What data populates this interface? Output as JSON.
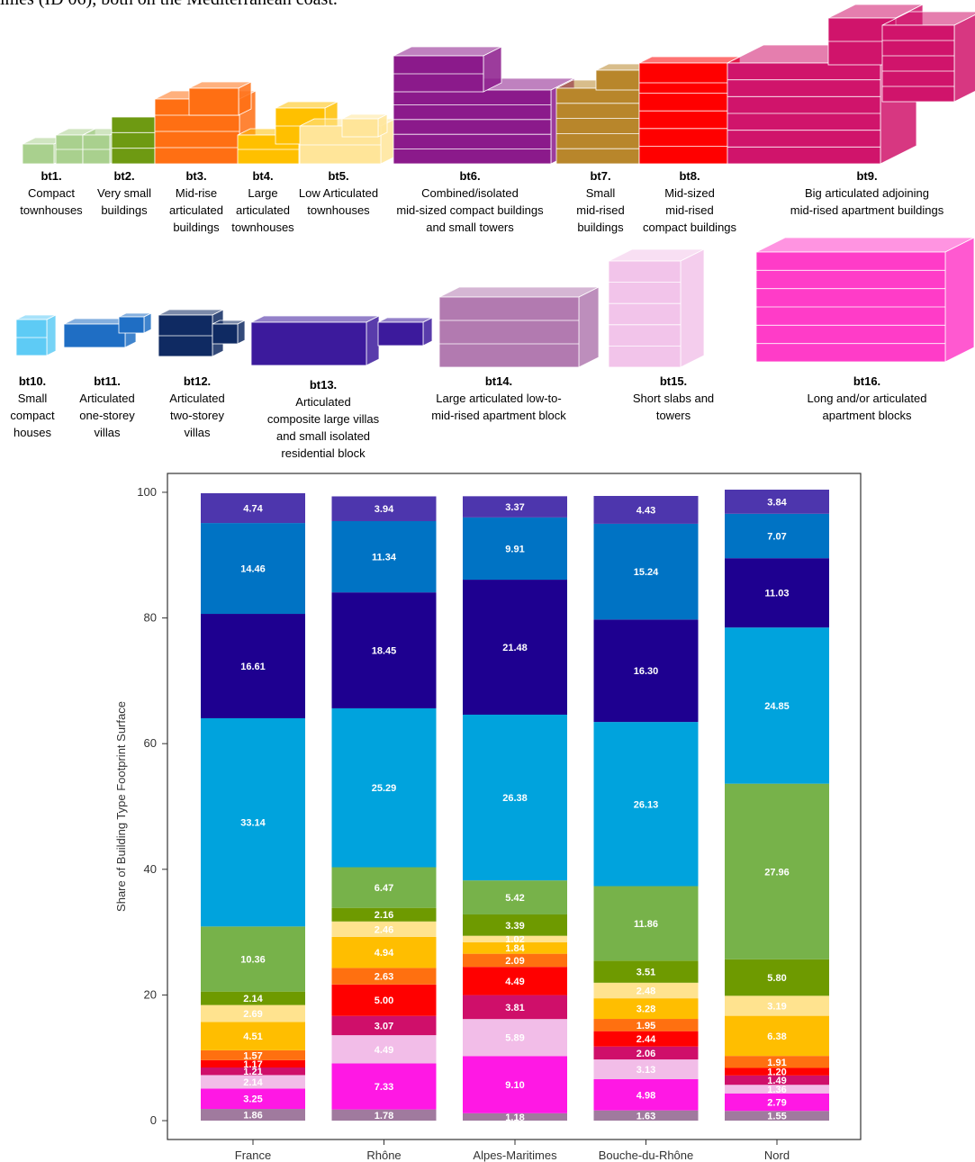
{
  "intro_text": "imes (ID 06), both on the Mediterranean coast.",
  "legend": [
    {
      "id": "bt1.",
      "lines": [
        "Compact",
        "townhouses"
      ],
      "color": "#a9d08e"
    },
    {
      "id": "bt2.",
      "lines": [
        "Very small",
        "buildings"
      ],
      "color": "#6e9a12"
    },
    {
      "id": "bt3.",
      "lines": [
        "Mid-rise",
        "articulated",
        "buildings"
      ],
      "color": "#ff6f13"
    },
    {
      "id": "bt4.",
      "lines": [
        "Large",
        "articulated",
        "townhouses"
      ],
      "color": "#ffc000"
    },
    {
      "id": "bt5.",
      "lines": [
        "Low Articulated",
        "townhouses"
      ],
      "color": "#ffe599"
    },
    {
      "id": "bt6.",
      "lines": [
        "Combined/isolated",
        "mid-sized compact buildings",
        "and small towers"
      ],
      "color": "#8b1a8b"
    },
    {
      "id": "bt7.",
      "lines": [
        "Small",
        "mid-rised",
        "buildings"
      ],
      "color": "#b8862b"
    },
    {
      "id": "bt8.",
      "lines": [
        "Mid-sized",
        "mid-rised",
        "compact buildings"
      ],
      "color": "#ff0000"
    },
    {
      "id": "bt9.",
      "lines": [
        "Big articulated adjoining",
        "mid-rised apartment buildings"
      ],
      "color": "#d0146b"
    },
    {
      "id": "bt10.",
      "lines": [
        "Small",
        "compact",
        "houses"
      ],
      "color": "#5ecbf5"
    },
    {
      "id": "bt11.",
      "lines": [
        "Articulated",
        "one-storey",
        "villas"
      ],
      "color": "#1f6ec4"
    },
    {
      "id": "bt12.",
      "lines": [
        "Articulated",
        "two-storey",
        "villas"
      ],
      "color": "#0f2a62"
    },
    {
      "id": "bt13.",
      "lines": [
        "Articulated",
        "composite large villas",
        "and small isolated",
        "residential block"
      ],
      "color": "#3c1a9c"
    },
    {
      "id": "bt14.",
      "lines": [
        "Large articulated low-to-",
        "mid-rised apartment block"
      ],
      "color": "#b27ab0"
    },
    {
      "id": "bt15.",
      "lines": [
        "Short slabs and",
        "towers"
      ],
      "color": "#f2c4ea"
    },
    {
      "id": "bt16.",
      "lines": [
        "Long and/or articulated",
        "apartment blocks"
      ],
      "color": "#ff3cc8"
    }
  ],
  "chart_data": {
    "type": "bar",
    "stacked": true,
    "ylabel": "Share of Building Type Footprint Surface",
    "xlabel": "",
    "ylim": [
      -3,
      103
    ],
    "yticks": [
      0,
      20,
      40,
      60,
      80,
      100
    ],
    "grid": false,
    "categories": [
      "France",
      "Rhône",
      "Alpes-Maritimes",
      "Bouche-du-Rhône",
      "Nord"
    ],
    "series": [
      {
        "color": "#a07a9e",
        "values": [
          1.86,
          1.78,
          1.18,
          1.63,
          1.55
        ]
      },
      {
        "color": "#ff18e4",
        "values": [
          3.25,
          7.33,
          9.1,
          4.98,
          2.79
        ]
      },
      {
        "color": "#f2bde8",
        "values": [
          2.14,
          4.49,
          5.89,
          3.13,
          1.36
        ]
      },
      {
        "color": "#cf0f6a",
        "values": [
          1.21,
          3.07,
          3.81,
          2.06,
          1.49
        ]
      },
      {
        "color": "#ff0000",
        "values": [
          1.17,
          5.0,
          4.49,
          2.44,
          1.2
        ]
      },
      {
        "color": "#ff7010",
        "values": [
          1.57,
          2.63,
          2.09,
          1.95,
          1.91
        ]
      },
      {
        "color": "#ffbe00",
        "values": [
          4.51,
          4.94,
          1.84,
          3.28,
          6.38
        ]
      },
      {
        "color": "#ffe38f",
        "values": [
          2.69,
          2.46,
          1.02,
          2.48,
          3.19
        ]
      },
      {
        "color": "#6e9a00",
        "values": [
          2.14,
          2.16,
          3.39,
          3.51,
          5.8
        ]
      },
      {
        "color": "#77b24a",
        "values": [
          10.36,
          6.47,
          5.42,
          11.86,
          27.96
        ]
      },
      {
        "color": "#00a3dd",
        "values": [
          33.14,
          25.29,
          26.38,
          26.13,
          24.85
        ]
      },
      {
        "color": "#1e0090",
        "values": [
          16.61,
          18.45,
          21.48,
          16.3,
          11.03
        ]
      },
      {
        "color": "#0073c4",
        "values": [
          14.46,
          11.34,
          9.91,
          15.24,
          7.07
        ]
      },
      {
        "color": "#4d36ad",
        "values": [
          4.74,
          3.94,
          3.37,
          4.43,
          3.84
        ]
      }
    ]
  }
}
